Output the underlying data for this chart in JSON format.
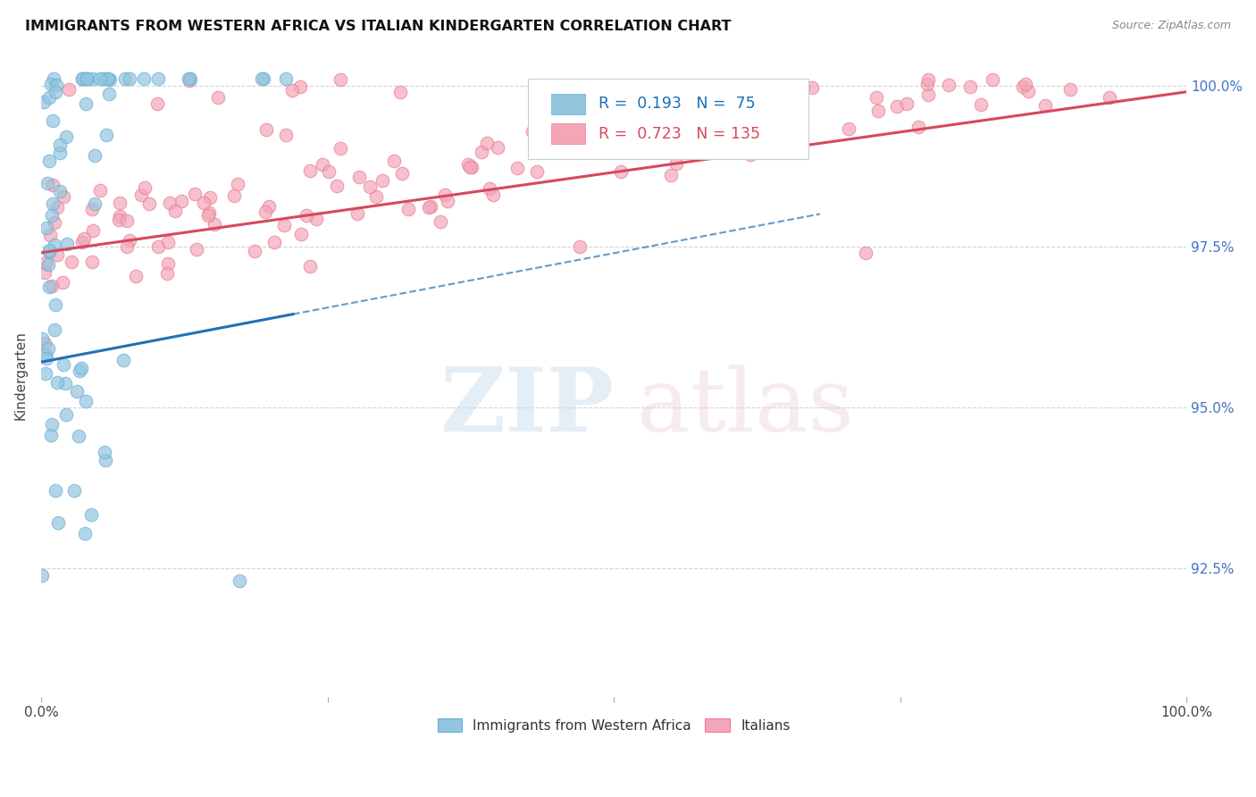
{
  "title": "IMMIGRANTS FROM WESTERN AFRICA VS ITALIAN KINDERGARTEN CORRELATION CHART",
  "source": "Source: ZipAtlas.com",
  "ylabel": "Kindergarten",
  "ytick_labels": [
    "92.5%",
    "95.0%",
    "97.5%",
    "100.0%"
  ],
  "ytick_values": [
    0.925,
    0.95,
    0.975,
    1.0
  ],
  "xlim": [
    0.0,
    1.0
  ],
  "ylim": [
    0.905,
    1.005
  ],
  "legend_r_blue": "0.193",
  "legend_n_blue": "75",
  "legend_r_pink": "0.723",
  "legend_n_pink": "135",
  "legend_label_blue": "Immigrants from Western Africa",
  "legend_label_pink": "Italians",
  "blue_color": "#92c5de",
  "pink_color": "#f4a6b8",
  "blue_line_color": "#2171b5",
  "pink_line_color": "#d6495e",
  "blue_marker_edge": "#6aaed6",
  "pink_marker_edge": "#e87d92"
}
